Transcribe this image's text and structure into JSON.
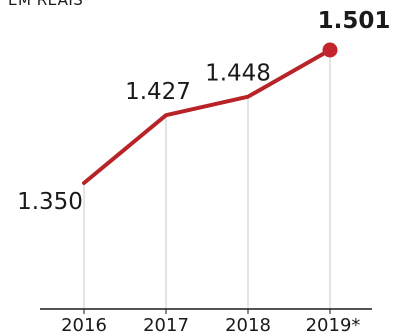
{
  "unit_label": "EM REAIS",
  "chart_data": {
    "type": "line",
    "title": "",
    "xlabel": "",
    "ylabel": "",
    "x": [
      "2016",
      "2017",
      "2018",
      "2019*"
    ],
    "values": [
      1350,
      1427,
      1448,
      1501
    ],
    "data_labels": [
      "1.350",
      "1.427",
      "1.448",
      "1.501"
    ],
    "grid": false,
    "colors": {
      "line": "#b82328",
      "marker": "#c2262c",
      "guides": "#c8c8c8",
      "axis": "#1a1a1a",
      "text": "#1a1a1a"
    }
  }
}
